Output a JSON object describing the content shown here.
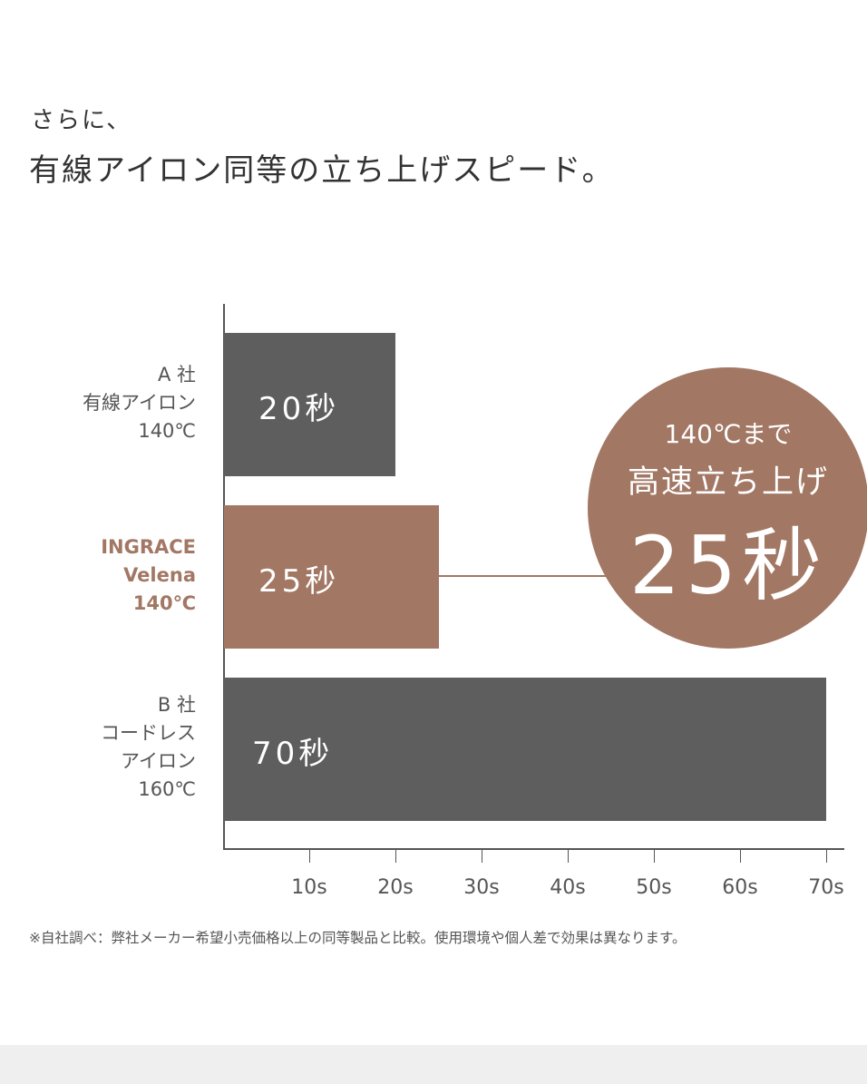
{
  "heading": {
    "lead": "さらに、",
    "title": "有線アイロン同等の立ち上げスピード。"
  },
  "colors": {
    "gray": "#5e5e5e",
    "brand": "#a27764",
    "axis": "#555555"
  },
  "chart_data": {
    "type": "bar",
    "orientation": "horizontal",
    "categories": [
      "A 社\n有線アイロン\n140℃",
      "INGRACE\nVelena\n140℃",
      "B 社\nコードレス\nアイロン\n160℃"
    ],
    "values": [
      20,
      25,
      70
    ],
    "bar_labels": [
      "20秒",
      "25秒",
      "70秒"
    ],
    "highlight_index": 1,
    "xlim": [
      0,
      70
    ],
    "x_ticks": [
      10,
      20,
      30,
      40,
      50,
      60,
      70
    ],
    "x_tick_labels": [
      "10s",
      "20s",
      "30s",
      "40s",
      "50s",
      "60s",
      "70s"
    ],
    "annotation": {
      "line1": "140℃まで",
      "line2": "高速立ち上げ",
      "line3": "25秒"
    }
  },
  "footnote": "※自社調べ：弊社メーカー希望小売価格以上の同等製品と比較。使用環境や個人差で効果は異なります。"
}
